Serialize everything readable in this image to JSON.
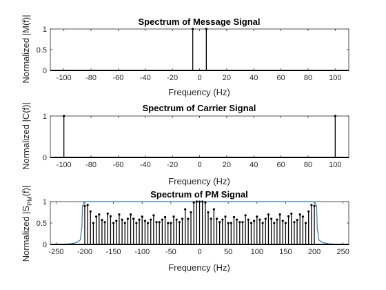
{
  "chart_data": [
    {
      "type": "stem",
      "title": "Spectrum of Message Signal",
      "xlabel": "Frequency (Hz)",
      "ylabel": "Normalized |M(f)|",
      "xlim": [
        -110,
        110
      ],
      "ylim": [
        0,
        1
      ],
      "xticks": [
        -100,
        -80,
        -60,
        -40,
        -20,
        0,
        20,
        40,
        60,
        80,
        100
      ],
      "yticks": [
        0,
        0.5,
        1
      ],
      "stem_color": "#000000",
      "stems": [
        {
          "x": -5,
          "y": 1
        },
        {
          "x": 5,
          "y": 1
        }
      ],
      "baseline_value": 0
    },
    {
      "type": "stem",
      "title": "Spectrum of Carrier Signal",
      "xlabel": "Frequency (Hz)",
      "ylabel": "Normalized |C(f)|",
      "xlim": [
        -110,
        110
      ],
      "ylim": [
        0,
        1
      ],
      "xticks": [
        -100,
        -80,
        -60,
        -40,
        -20,
        0,
        20,
        40,
        60,
        80,
        100
      ],
      "yticks": [
        0,
        1
      ],
      "stem_color": "#000000",
      "stems": [
        {
          "x": -100,
          "y": 1
        },
        {
          "x": 100,
          "y": 1
        }
      ],
      "baseline_value": 0
    },
    {
      "type": "stem",
      "title": "Spectrum of PM Signal",
      "xlabel": "Frequency (Hz)",
      "ylabel": "Normalized |S",
      "ylabel_sub": "PM",
      "ylabel_tail": "(f)|",
      "xlim": [
        -260,
        260
      ],
      "ylim": [
        0,
        1
      ],
      "xticks": [
        -250,
        -200,
        -150,
        -100,
        -50,
        0,
        50,
        100,
        150,
        200,
        250
      ],
      "yticks": [
        0,
        0.5,
        1
      ],
      "stem_color": "#000000",
      "envelope_color": "#2a7ab0",
      "envelope": {
        "x": [
          -260,
          -240,
          -225,
          -215,
          -208,
          -205,
          -204,
          -200,
          -195,
          195,
          200,
          204,
          205,
          208,
          215,
          225,
          240,
          260
        ],
        "y": [
          0,
          0.005,
          0.015,
          0.04,
          0.1,
          0.4,
          0.9,
          1,
          1,
          1,
          1,
          0.9,
          0.4,
          0.1,
          0.04,
          0.015,
          0.005,
          0
        ]
      },
      "stems": [
        {
          "x": -200,
          "y": 0.9
        },
        {
          "x": -195,
          "y": 0.92
        },
        {
          "x": -190,
          "y": 0.77
        },
        {
          "x": -185,
          "y": 0.5
        },
        {
          "x": -180,
          "y": 0.65
        },
        {
          "x": -175,
          "y": 0.7
        },
        {
          "x": -170,
          "y": 0.57
        },
        {
          "x": -165,
          "y": 0.52
        },
        {
          "x": -160,
          "y": 0.72
        },
        {
          "x": -155,
          "y": 0.66
        },
        {
          "x": -150,
          "y": 0.5
        },
        {
          "x": -145,
          "y": 0.55
        },
        {
          "x": -140,
          "y": 0.7
        },
        {
          "x": -135,
          "y": 0.58
        },
        {
          "x": -130,
          "y": 0.5
        },
        {
          "x": -125,
          "y": 0.6
        },
        {
          "x": -120,
          "y": 0.7
        },
        {
          "x": -115,
          "y": 0.6
        },
        {
          "x": -110,
          "y": 0.5
        },
        {
          "x": -105,
          "y": 0.58
        },
        {
          "x": -100,
          "y": 0.65
        },
        {
          "x": -95,
          "y": 0.55
        },
        {
          "x": -90,
          "y": 0.5
        },
        {
          "x": -85,
          "y": 0.58
        },
        {
          "x": -80,
          "y": 0.68
        },
        {
          "x": -75,
          "y": 0.52
        },
        {
          "x": -70,
          "y": 0.52
        },
        {
          "x": -65,
          "y": 0.58
        },
        {
          "x": -60,
          "y": 0.64
        },
        {
          "x": -55,
          "y": 0.5
        },
        {
          "x": -50,
          "y": 0.5
        },
        {
          "x": -45,
          "y": 0.65
        },
        {
          "x": -40,
          "y": 0.58
        },
        {
          "x": -35,
          "y": 0.52
        },
        {
          "x": -30,
          "y": 0.6
        },
        {
          "x": -25,
          "y": 0.82
        },
        {
          "x": -20,
          "y": 0.6
        },
        {
          "x": -15,
          "y": 0.75
        },
        {
          "x": -10,
          "y": 0.98
        },
        {
          "x": -5,
          "y": 1.0
        },
        {
          "x": 0,
          "y": 1.0
        },
        {
          "x": 5,
          "y": 1.0
        },
        {
          "x": 10,
          "y": 0.98
        },
        {
          "x": 15,
          "y": 0.75
        },
        {
          "x": 20,
          "y": 0.6
        },
        {
          "x": 25,
          "y": 0.82
        },
        {
          "x": 30,
          "y": 0.6
        },
        {
          "x": 35,
          "y": 0.52
        },
        {
          "x": 40,
          "y": 0.58
        },
        {
          "x": 45,
          "y": 0.65
        },
        {
          "x": 50,
          "y": 0.5
        },
        {
          "x": 55,
          "y": 0.5
        },
        {
          "x": 60,
          "y": 0.64
        },
        {
          "x": 65,
          "y": 0.58
        },
        {
          "x": 70,
          "y": 0.52
        },
        {
          "x": 75,
          "y": 0.52
        },
        {
          "x": 80,
          "y": 0.68
        },
        {
          "x": 85,
          "y": 0.58
        },
        {
          "x": 90,
          "y": 0.5
        },
        {
          "x": 95,
          "y": 0.55
        },
        {
          "x": 100,
          "y": 0.65
        },
        {
          "x": 105,
          "y": 0.58
        },
        {
          "x": 110,
          "y": 0.5
        },
        {
          "x": 115,
          "y": 0.6
        },
        {
          "x": 120,
          "y": 0.7
        },
        {
          "x": 125,
          "y": 0.6
        },
        {
          "x": 130,
          "y": 0.5
        },
        {
          "x": 135,
          "y": 0.58
        },
        {
          "x": 140,
          "y": 0.7
        },
        {
          "x": 145,
          "y": 0.55
        },
        {
          "x": 150,
          "y": 0.5
        },
        {
          "x": 155,
          "y": 0.66
        },
        {
          "x": 160,
          "y": 0.72
        },
        {
          "x": 165,
          "y": 0.52
        },
        {
          "x": 170,
          "y": 0.57
        },
        {
          "x": 175,
          "y": 0.7
        },
        {
          "x": 180,
          "y": 0.65
        },
        {
          "x": 185,
          "y": 0.5
        },
        {
          "x": 190,
          "y": 0.77
        },
        {
          "x": 195,
          "y": 0.92
        },
        {
          "x": 200,
          "y": 0.9
        }
      ],
      "baseline_value": 0
    }
  ]
}
